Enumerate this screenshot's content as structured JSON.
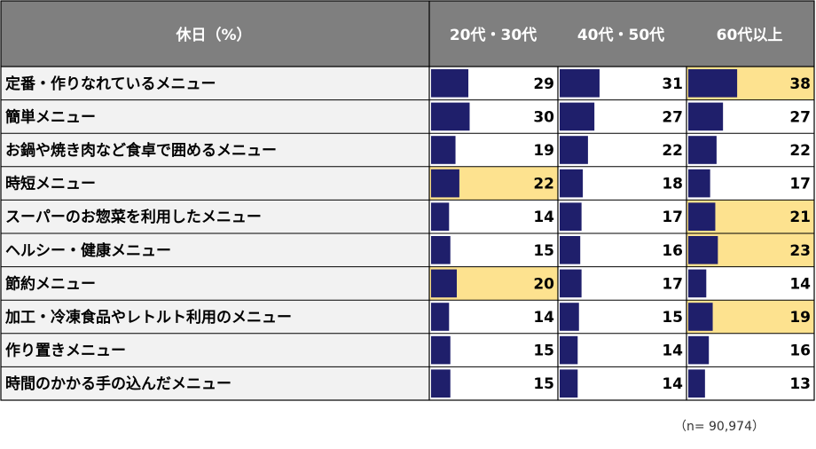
{
  "chart_data": {
    "type": "table",
    "title": "休日（%）",
    "columns": [
      "20代・30代",
      "40代・50代",
      "60代以上"
    ],
    "rows": [
      {
        "label": "定番・作りなれているメニュー",
        "values": [
          29,
          31,
          38
        ],
        "highlight": [
          false,
          false,
          true
        ]
      },
      {
        "label": "簡単メニュー",
        "values": [
          30,
          27,
          27
        ],
        "highlight": [
          false,
          false,
          false
        ]
      },
      {
        "label": "お鍋や焼き肉など食卓で囲めるメニュー",
        "values": [
          19,
          22,
          22
        ],
        "highlight": [
          false,
          false,
          false
        ]
      },
      {
        "label": "時短メニュー",
        "values": [
          22,
          18,
          17
        ],
        "highlight": [
          true,
          false,
          false
        ]
      },
      {
        "label": "スーパーのお惣菜を利用したメニュー",
        "values": [
          14,
          17,
          21
        ],
        "highlight": [
          false,
          false,
          true
        ]
      },
      {
        "label": "ヘルシー・健康メニュー",
        "values": [
          15,
          16,
          23
        ],
        "highlight": [
          false,
          false,
          true
        ]
      },
      {
        "label": "節約メニュー",
        "values": [
          20,
          17,
          14
        ],
        "highlight": [
          true,
          false,
          false
        ]
      },
      {
        "label": "加工・冷凍食品やレトルト利用のメニュー",
        "values": [
          14,
          15,
          19
        ],
        "highlight": [
          false,
          false,
          true
        ]
      },
      {
        "label": "作り置きメニュー",
        "values": [
          15,
          14,
          16
        ],
        "highlight": [
          false,
          false,
          false
        ]
      },
      {
        "label": "時間のかかる手の込んだメニュー",
        "values": [
          15,
          14,
          13
        ],
        "highlight": [
          false,
          false,
          false
        ]
      }
    ],
    "note": "（n= 90,974）",
    "colors": {
      "header_bg": "#7f7f7f",
      "label_bg": "#f2f2f2",
      "bar": "#1f1f6b",
      "highlight": "#fde28f",
      "cell_bg": "#ffffff",
      "border": "#000000"
    }
  }
}
